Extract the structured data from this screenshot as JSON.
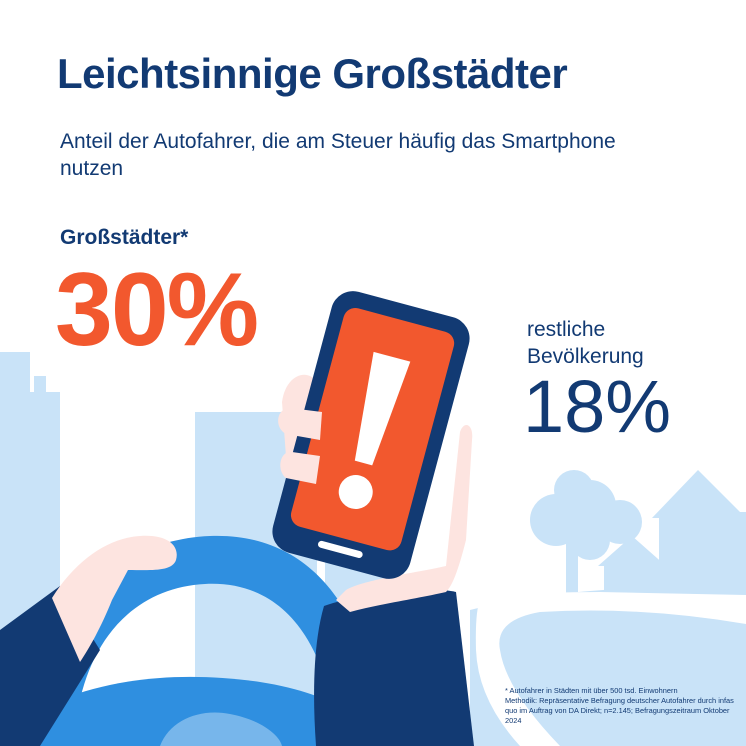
{
  "heading": {
    "title": "Leichtsinnige Großstädter",
    "subtitle": "Anteil der Autofahrer, die am Steuer häufig das Smartphone nutzen"
  },
  "stats": {
    "city_label": "Großstädter*",
    "city_value": "30%",
    "rest_label": "restliche Bevölkerung",
    "rest_value": "18%"
  },
  "footnote": {
    "line1": "* Autofahrer in Städten mit über 500 tsd. Einwohnern",
    "line2": "Methodik: Repräsentative Befragung deutscher Autofahrer durch infas quo im Auftrag von DA Direkt; n=2.145; Befragungszeitraum Oktober 2024"
  },
  "colors": {
    "navy": "#123a73",
    "orange": "#f2582e",
    "light_blue": "#c9e3f8",
    "wheel_blue": "#2f8fe0",
    "skin": "#fde4e0",
    "sleeve": "#123a73"
  },
  "illustration": {
    "icons": [
      "skyline",
      "tree",
      "house",
      "road",
      "steering-wheel",
      "hand",
      "smartphone",
      "exclamation-mark-icon"
    ]
  }
}
